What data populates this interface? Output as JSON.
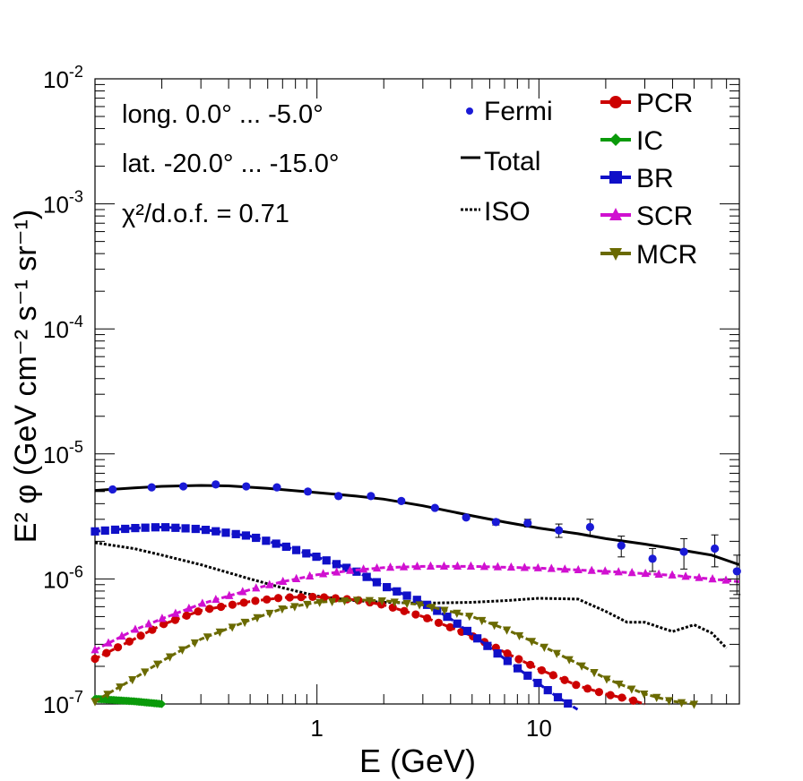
{
  "chart_data": {
    "type": "line",
    "xscale": "log",
    "yscale": "log",
    "xlim": [
      0.1,
      80
    ],
    "ylim": [
      1e-07,
      0.01
    ],
    "xlabel": "E (GeV)",
    "ylabel": "E² φ (GeV cm⁻² s⁻¹ sr⁻¹)",
    "x_ticks": [
      {
        "value": 1,
        "label": "1"
      },
      {
        "value": 10,
        "label": "10"
      }
    ],
    "y_ticks": [
      {
        "value": 1e-07,
        "mantissa": "10",
        "exponent": "-7"
      },
      {
        "value": 1e-06,
        "mantissa": "10",
        "exponent": "-6"
      },
      {
        "value": 1e-05,
        "mantissa": "10",
        "exponent": "-5"
      },
      {
        "value": 0.0001,
        "mantissa": "10",
        "exponent": "-4"
      },
      {
        "value": 0.001,
        "mantissa": "10",
        "exponent": "-3"
      },
      {
        "value": 0.01,
        "mantissa": "10",
        "exponent": "-2"
      }
    ],
    "info": [
      "long. 0.0° ... -5.0°",
      "lat. -20.0° ... -15.0°",
      "χ²/d.o.f. = 0.71"
    ],
    "fermi": {
      "name": "Fermi",
      "color": "#1a1ad6",
      "points": [
        [
          0.12,
          5.2e-06,
          0
        ],
        [
          0.18,
          5.4e-06,
          0
        ],
        [
          0.25,
          5.5e-06,
          0
        ],
        [
          0.35,
          5.7e-06,
          0
        ],
        [
          0.48,
          5.5e-06,
          0
        ],
        [
          0.66,
          5.4e-06,
          0
        ],
        [
          0.91,
          5e-06,
          0
        ],
        [
          1.25,
          4.6e-06,
          0
        ],
        [
          1.75,
          4.6e-06,
          0
        ],
        [
          2.4,
          4.2e-06,
          0
        ],
        [
          3.4,
          3.7e-06,
          0
        ],
        [
          4.7,
          3.1e-06,
          0
        ],
        [
          6.4,
          2.85e-06,
          1.5e-07
        ],
        [
          8.9,
          2.8e-06,
          2e-07
        ],
        [
          12.3,
          2.45e-06,
          3e-07
        ],
        [
          17,
          2.6e-06,
          4e-07
        ],
        [
          23.5,
          1.85e-06,
          3.5e-07
        ],
        [
          32.5,
          1.45e-06,
          3e-07
        ],
        [
          45,
          1.65e-06,
          4.5e-07
        ],
        [
          62,
          1.75e-06,
          5e-07
        ],
        [
          78,
          1.15e-06,
          4e-07
        ]
      ]
    },
    "series": [
      {
        "name": "Total",
        "style": "solid",
        "color": "#000000",
        "x": [
          0.1,
          0.15,
          0.2,
          0.3,
          0.4,
          0.6,
          1,
          1.5,
          2,
          3,
          5,
          7,
          10,
          15,
          20,
          30,
          40,
          60,
          80
        ],
        "y": [
          5.1e-06,
          5.35e-06,
          5.5e-06,
          5.6e-06,
          5.55e-06,
          5.3e-06,
          4.9e-06,
          4.6e-06,
          4.35e-06,
          3.85e-06,
          3.2e-06,
          2.85e-06,
          2.55e-06,
          2.3e-06,
          2.1e-06,
          1.9e-06,
          1.75e-06,
          1.55e-06,
          1.3e-06
        ]
      },
      {
        "name": "ISO",
        "style": "dotted",
        "color": "#000000",
        "x": [
          0.1,
          0.15,
          0.2,
          0.3,
          0.5,
          0.7,
          1,
          1.5,
          2,
          3,
          5,
          7,
          10,
          15,
          20,
          25,
          30,
          40,
          50,
          60,
          70
        ],
        "y": [
          1.95e-06,
          1.75e-06,
          1.55e-06,
          1.3e-06,
          1e-06,
          8.5e-07,
          7.3e-07,
          6.7e-07,
          6.5e-07,
          6.4e-07,
          6.5e-07,
          6.7e-07,
          7e-07,
          6.9e-07,
          5.5e-07,
          4.5e-07,
          4.5e-07,
          3.8e-07,
          4.3e-07,
          3.7e-07,
          2.8e-07
        ]
      },
      {
        "name": "PCR",
        "style": "marker",
        "marker": "circle",
        "color": "#cc0000",
        "x": [
          0.1,
          0.15,
          0.2,
          0.3,
          0.5,
          0.7,
          1,
          1.5,
          2,
          3,
          5,
          7,
          10,
          15,
          20,
          25,
          30
        ],
        "y": [
          2.3e-07,
          3.3e-07,
          4.3e-07,
          5.6e-07,
          6.6e-07,
          7.1e-07,
          7.2e-07,
          6.8e-07,
          6.2e-07,
          5e-07,
          3.5e-07,
          2.6e-07,
          1.9e-07,
          1.4e-07,
          1.2e-07,
          1.1e-07,
          1e-07
        ]
      },
      {
        "name": "IC",
        "style": "marker",
        "marker": "cross",
        "color": "#0a9a0a",
        "x": [
          0.1,
          0.15,
          0.2
        ],
        "y": [
          1.1e-07,
          1.05e-07,
          1e-07
        ]
      },
      {
        "name": "BR",
        "style": "marker",
        "marker": "square",
        "color": "#1010c8",
        "x": [
          0.1,
          0.15,
          0.2,
          0.3,
          0.5,
          0.7,
          1,
          1.5,
          2,
          3,
          4,
          5,
          7,
          10,
          12,
          15
        ],
        "y": [
          2.4e-06,
          2.55e-06,
          2.6e-06,
          2.5e-06,
          2.2e-06,
          1.85e-06,
          1.5e-06,
          1.15e-06,
          8.8e-07,
          6.5e-07,
          4.8e-07,
          3.6e-07,
          2.3e-07,
          1.45e-07,
          1.15e-07,
          9e-08
        ]
      },
      {
        "name": "SCR",
        "style": "marker",
        "marker": "triangle-up",
        "color": "#d010d0",
        "x": [
          0.1,
          0.15,
          0.2,
          0.3,
          0.5,
          0.7,
          1,
          1.5,
          2,
          3,
          5,
          10,
          20,
          40,
          80
        ],
        "y": [
          2.7e-07,
          3.9e-07,
          4.8e-07,
          6.3e-07,
          8.2e-07,
          9.5e-07,
          1.08e-06,
          1.18e-06,
          1.23e-06,
          1.26e-06,
          1.26e-06,
          1.22e-06,
          1.15e-06,
          1.07e-06,
          9.5e-07
        ]
      },
      {
        "name": "MCR",
        "style": "marker",
        "marker": "triangle-down",
        "color": "#6a6a00",
        "x": [
          0.1,
          0.15,
          0.2,
          0.3,
          0.5,
          0.7,
          1,
          1.5,
          2,
          3,
          5,
          7,
          10,
          15,
          20,
          30,
          40,
          50
        ],
        "y": [
          1.05e-07,
          1.6e-07,
          2.2e-07,
          3.3e-07,
          4.7e-07,
          5.8e-07,
          6.5e-07,
          6.8e-07,
          6.7e-07,
          6.2e-07,
          5e-07,
          4e-07,
          3e-07,
          2.1e-07,
          1.6e-07,
          1.2e-07,
          1.05e-07,
          1e-07
        ]
      }
    ],
    "legend_left": [
      {
        "name": "Fermi",
        "symbol": "dot"
      },
      {
        "name": "Total",
        "symbol": "solid"
      },
      {
        "name": "ISO",
        "symbol": "dotted"
      }
    ],
    "legend_right": [
      {
        "name": "PCR",
        "symbol": "circle",
        "color": "#cc0000"
      },
      {
        "name": "IC",
        "symbol": "cross",
        "color": "#0a9a0a"
      },
      {
        "name": "BR",
        "symbol": "square",
        "color": "#1010c8"
      },
      {
        "name": "SCR",
        "symbol": "triangle-up",
        "color": "#d010d0"
      },
      {
        "name": "MCR",
        "symbol": "triangle-down",
        "color": "#6a6a00"
      }
    ]
  }
}
